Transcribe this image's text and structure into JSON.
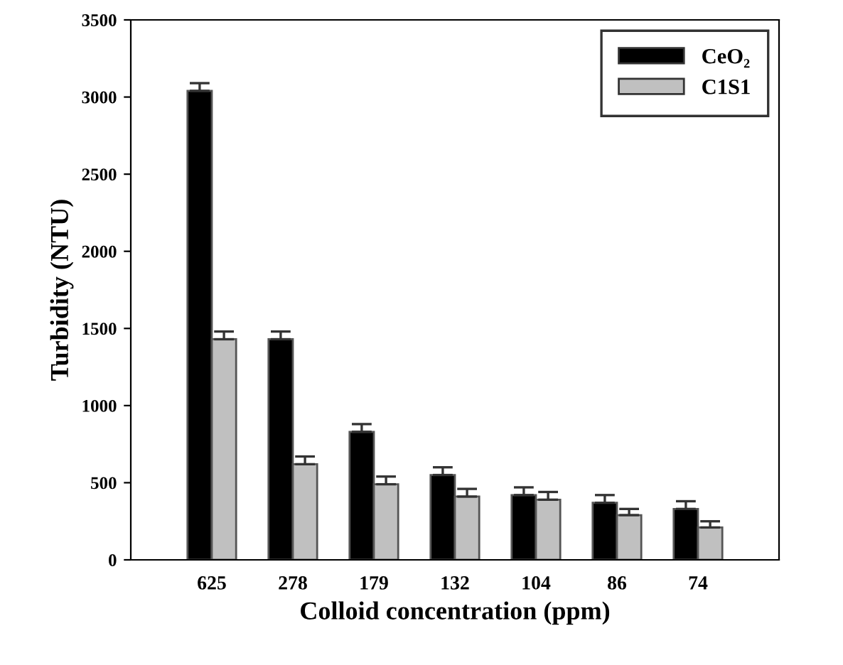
{
  "chart_data": {
    "type": "bar",
    "xlabel": "Colloid concentration (ppm)",
    "ylabel": "Turbidity (NTU)",
    "categories": [
      "625",
      "278",
      "179",
      "132",
      "104",
      "86",
      "74"
    ],
    "series": [
      {
        "name": "CeO₂",
        "color": "#000000",
        "values": [
          3040,
          1430,
          830,
          550,
          420,
          370,
          330
        ],
        "errors": [
          50,
          50,
          50,
          50,
          50,
          50,
          50
        ]
      },
      {
        "name": "C1S1",
        "color": "#c0c0c0",
        "values": [
          1430,
          620,
          490,
          410,
          390,
          290,
          210
        ],
        "errors": [
          50,
          50,
          50,
          50,
          50,
          40,
          40
        ]
      }
    ],
    "ylim": [
      0,
      3500
    ],
    "yticks": [
      0,
      500,
      1000,
      1500,
      2000,
      2500,
      3000,
      3500
    ],
    "grid": false,
    "legend": "top right"
  }
}
